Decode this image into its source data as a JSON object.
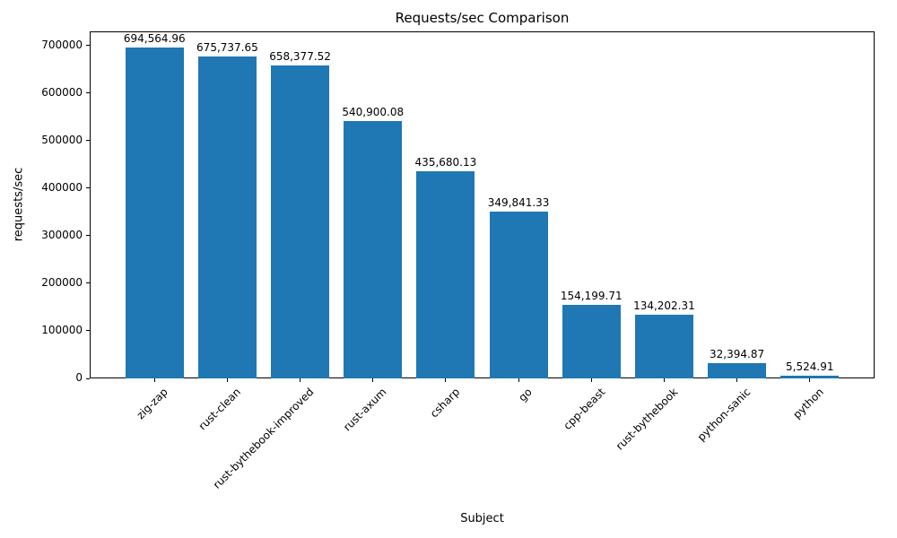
{
  "chart_data": {
    "type": "bar",
    "title": "Requests/sec Comparison",
    "xlabel": "Subject",
    "ylabel": "requests/sec",
    "categories": [
      "zig-zap",
      "rust-clean",
      "rust-bythebook-improved",
      "rust-axum",
      "csharp",
      "go",
      "cpp-beast",
      "rust-bythebook",
      "python-sanic",
      "python"
    ],
    "values": [
      694564.96,
      675737.65,
      658377.52,
      540900.08,
      435680.13,
      349841.33,
      154199.71,
      134202.31,
      32394.87,
      5524.91
    ],
    "bar_labels": [
      "694,564.96",
      "675,737.65",
      "658,377.52",
      "540,900.08",
      "435,680.13",
      "349,841.33",
      "154,199.71",
      "134,202.31",
      "32,394.87",
      "5,524.91"
    ],
    "yticks": [
      0,
      100000,
      200000,
      300000,
      400000,
      500000,
      600000,
      700000
    ],
    "ylim": [
      0,
      729293
    ],
    "xlim": [
      -0.89,
      9.89
    ],
    "bar_color": "#1f77b4",
    "background_color": "#ffffff",
    "grid": false,
    "legend": false
  }
}
